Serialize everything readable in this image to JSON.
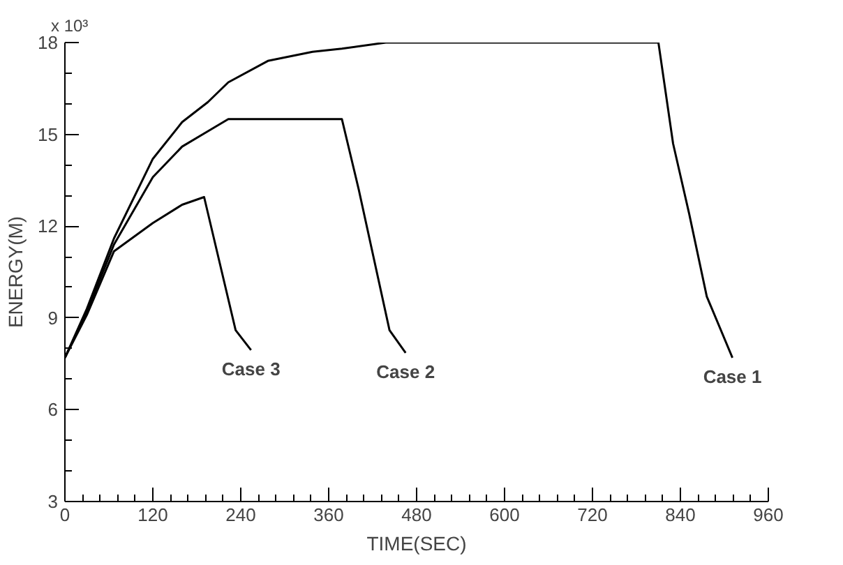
{
  "chart_data": {
    "type": "line",
    "xlabel": "TIME(SEC)",
    "ylabel": "ENERGY(M)",
    "xlim": [
      0,
      960
    ],
    "ylim": [
      3,
      18
    ],
    "xticks": [
      0,
      120,
      240,
      360,
      480,
      600,
      720,
      840,
      960
    ],
    "yticks": [
      3,
      6,
      9,
      12,
      15,
      18
    ],
    "grid": false,
    "marker": "none",
    "line_style": "solid",
    "annotations": [
      "x 10³"
    ],
    "series": [
      {
        "name": "Case 1",
        "color": "#000000",
        "x": [
          0,
          30,
          67,
          120,
          160,
          195,
          223,
          277,
          338,
          378,
          438,
          810,
          830,
          852,
          876,
          911
        ],
        "values": [
          7.7,
          9.3,
          11.6,
          14.2,
          15.4,
          16.05,
          16.7,
          17.4,
          17.7,
          17.8,
          18.0,
          18.0,
          14.7,
          12.4,
          9.7,
          7.7
        ]
      },
      {
        "name": "Case 2",
        "color": "#000000",
        "x": [
          0,
          30,
          67,
          120,
          160,
          195,
          223,
          378,
          401,
          443,
          465
        ],
        "values": [
          7.7,
          9.2,
          11.4,
          13.6,
          14.6,
          15.1,
          15.5,
          15.5,
          13.2,
          8.6,
          7.86
        ]
      },
      {
        "name": "Case 3",
        "color": "#000000",
        "x": [
          0,
          30,
          67,
          120,
          160,
          190,
          233,
          254
        ],
        "values": [
          7.7,
          9.1,
          11.18,
          12.1,
          12.7,
          12.95,
          8.6,
          7.95
        ]
      }
    ]
  }
}
